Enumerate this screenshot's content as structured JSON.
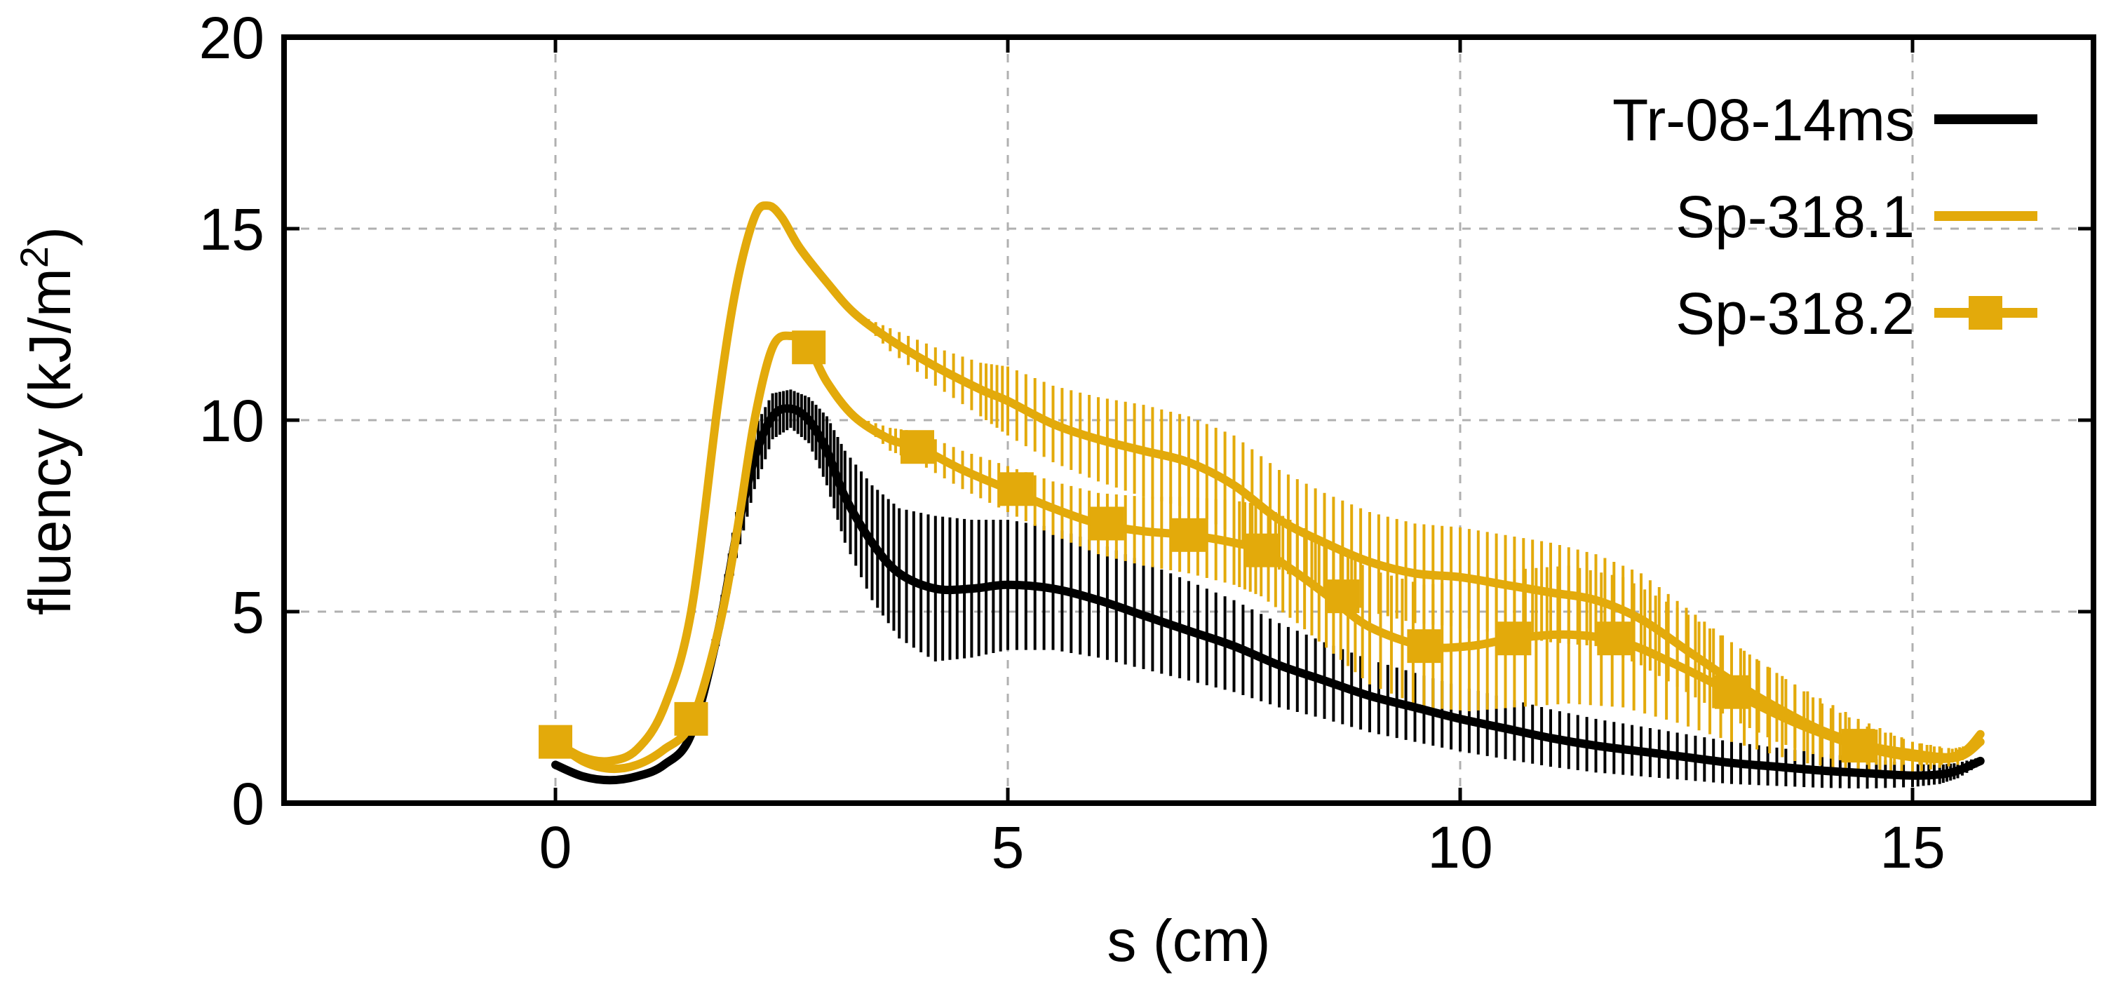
{
  "chart_data": {
    "type": "line",
    "title": "",
    "xlabel": "s (cm)",
    "ylabel": "fluency (kJ/m²)",
    "ylabel_base": "fluency (kJ/m",
    "ylabel_sup": "2",
    "ylabel_end": ")",
    "xlim": [
      -3,
      17
    ],
    "ylim": [
      0,
      20
    ],
    "xticks": [
      0,
      5,
      10,
      15
    ],
    "yticks": [
      0,
      5,
      10,
      15,
      20
    ],
    "grid": true,
    "legend_position": "top-right",
    "series": [
      {
        "name": "Tr-08-14ms",
        "color": "#000000",
        "markers": false,
        "x": [
          0,
          0.3,
          0.6,
          0.9,
          1.2,
          1.5,
          1.8,
          2.0,
          2.2,
          2.4,
          2.6,
          2.8,
          3.0,
          3.2,
          3.5,
          3.8,
          4.2,
          4.6,
          5.0,
          5.5,
          6.0,
          6.5,
          7.0,
          7.5,
          8.0,
          8.5,
          9.0,
          9.5,
          10.0,
          10.5,
          11.0,
          11.5,
          12.0,
          12.5,
          13.0,
          13.5,
          14.0,
          14.5,
          15.0,
          15.3,
          15.5,
          15.75
        ],
        "y": [
          1.0,
          0.7,
          0.6,
          0.7,
          1.0,
          1.8,
          4.5,
          7.0,
          9.0,
          10.1,
          10.3,
          10.0,
          9.2,
          8.0,
          6.8,
          6.0,
          5.6,
          5.6,
          5.7,
          5.6,
          5.3,
          4.9,
          4.5,
          4.1,
          3.6,
          3.2,
          2.8,
          2.5,
          2.2,
          1.95,
          1.7,
          1.5,
          1.35,
          1.2,
          1.05,
          0.95,
          0.85,
          0.78,
          0.72,
          0.75,
          0.85,
          1.1
        ],
        "errors": [
          0,
          0,
          0,
          0,
          0,
          0,
          0.4,
          0.6,
          0.8,
          0.6,
          0.5,
          0.6,
          0.9,
          1.2,
          1.5,
          1.7,
          1.9,
          1.8,
          1.7,
          1.6,
          1.5,
          1.4,
          1.3,
          1.2,
          1.1,
          1.0,
          0.95,
          0.9,
          0.85,
          0.8,
          0.75,
          0.7,
          0.65,
          0.6,
          0.55,
          0.5,
          0.45,
          0.4,
          0.3,
          0.25,
          0.2,
          0.1
        ]
      },
      {
        "name": "Sp-318.1",
        "color": "#e3aa0b",
        "markers": false,
        "x": [
          0,
          0.3,
          0.6,
          0.9,
          1.2,
          1.5,
          1.8,
          2.0,
          2.2,
          2.35,
          2.5,
          2.7,
          3.0,
          3.3,
          3.7,
          4.2,
          4.7,
          5.0,
          5.5,
          6.0,
          6.5,
          7.0,
          7.5,
          8.0,
          8.5,
          9.0,
          9.5,
          10.0,
          10.5,
          11.0,
          11.5,
          12.0,
          12.5,
          13.0,
          13.5,
          14.0,
          14.5,
          15.0,
          15.4,
          15.6,
          15.75
        ],
        "y": [
          1.6,
          1.2,
          1.1,
          1.4,
          2.5,
          5.0,
          10.5,
          13.5,
          15.3,
          15.6,
          15.3,
          14.5,
          13.6,
          12.8,
          12.1,
          11.4,
          10.8,
          10.5,
          9.9,
          9.5,
          9.2,
          8.9,
          8.3,
          7.4,
          6.8,
          6.3,
          6.0,
          5.9,
          5.7,
          5.5,
          5.3,
          4.8,
          4.0,
          3.2,
          2.5,
          1.9,
          1.5,
          1.3,
          1.2,
          1.4,
          1.8
        ],
        "errors": [
          0,
          0,
          0,
          0,
          0,
          0,
          0,
          0,
          0,
          0,
          0,
          0,
          0,
          0,
          0.3,
          0.5,
          0.7,
          0.9,
          1.0,
          1.1,
          1.2,
          1.2,
          1.3,
          1.3,
          1.3,
          1.3,
          1.3,
          1.3,
          1.3,
          1.3,
          1.2,
          1.2,
          1.1,
          1.0,
          0.9,
          0.7,
          0.5,
          0.3,
          0.2,
          0.1,
          0
        ]
      },
      {
        "name": "Sp-318.2",
        "color": "#e3aa0b",
        "markers": true,
        "x": [
          0,
          0.3,
          0.6,
          0.9,
          1.2,
          1.5,
          1.8,
          2.0,
          2.2,
          2.4,
          2.6,
          2.8,
          3.0,
          3.3,
          3.7,
          4.0,
          4.5,
          5.0,
          5.5,
          6.0,
          6.5,
          7.0,
          7.5,
          7.8,
          8.2,
          8.6,
          9.0,
          9.6,
          10.1,
          10.6,
          11.2,
          11.8,
          12.4,
          13.0,
          13.7,
          14.4,
          15.0,
          15.5,
          15.75
        ],
        "y": [
          1.6,
          1.1,
          0.9,
          1.0,
          1.4,
          2.1,
          4.5,
          7.0,
          10.0,
          11.9,
          12.2,
          11.9,
          11.0,
          10.1,
          9.5,
          9.3,
          8.7,
          8.2,
          7.7,
          7.3,
          7.1,
          7.0,
          6.8,
          6.6,
          6.0,
          5.3,
          4.6,
          4.1,
          4.1,
          4.3,
          4.4,
          4.2,
          3.6,
          2.9,
          2.1,
          1.5,
          1.2,
          1.2,
          1.6
        ],
        "errors": [
          0,
          0,
          0,
          0,
          0,
          0,
          0,
          0,
          0,
          0,
          0,
          0,
          0,
          0,
          0.3,
          0.4,
          0.5,
          0.6,
          0.7,
          0.8,
          0.9,
          1.0,
          1.1,
          1.2,
          1.3,
          1.4,
          1.5,
          1.6,
          1.7,
          1.8,
          1.8,
          1.7,
          1.5,
          1.3,
          1.0,
          0.7,
          0.4,
          0.2,
          0
        ],
        "marker_x": [
          0,
          1.5,
          2.8,
          4.0,
          5.1,
          6.1,
          7.0,
          7.8,
          8.7,
          9.6,
          10.6,
          11.7,
          13.0,
          14.4
        ],
        "marker_y": [
          1.6,
          2.2,
          11.9,
          9.3,
          8.2,
          7.3,
          7.0,
          6.6,
          5.4,
          4.1,
          4.3,
          4.3,
          2.9,
          1.5
        ]
      }
    ]
  }
}
